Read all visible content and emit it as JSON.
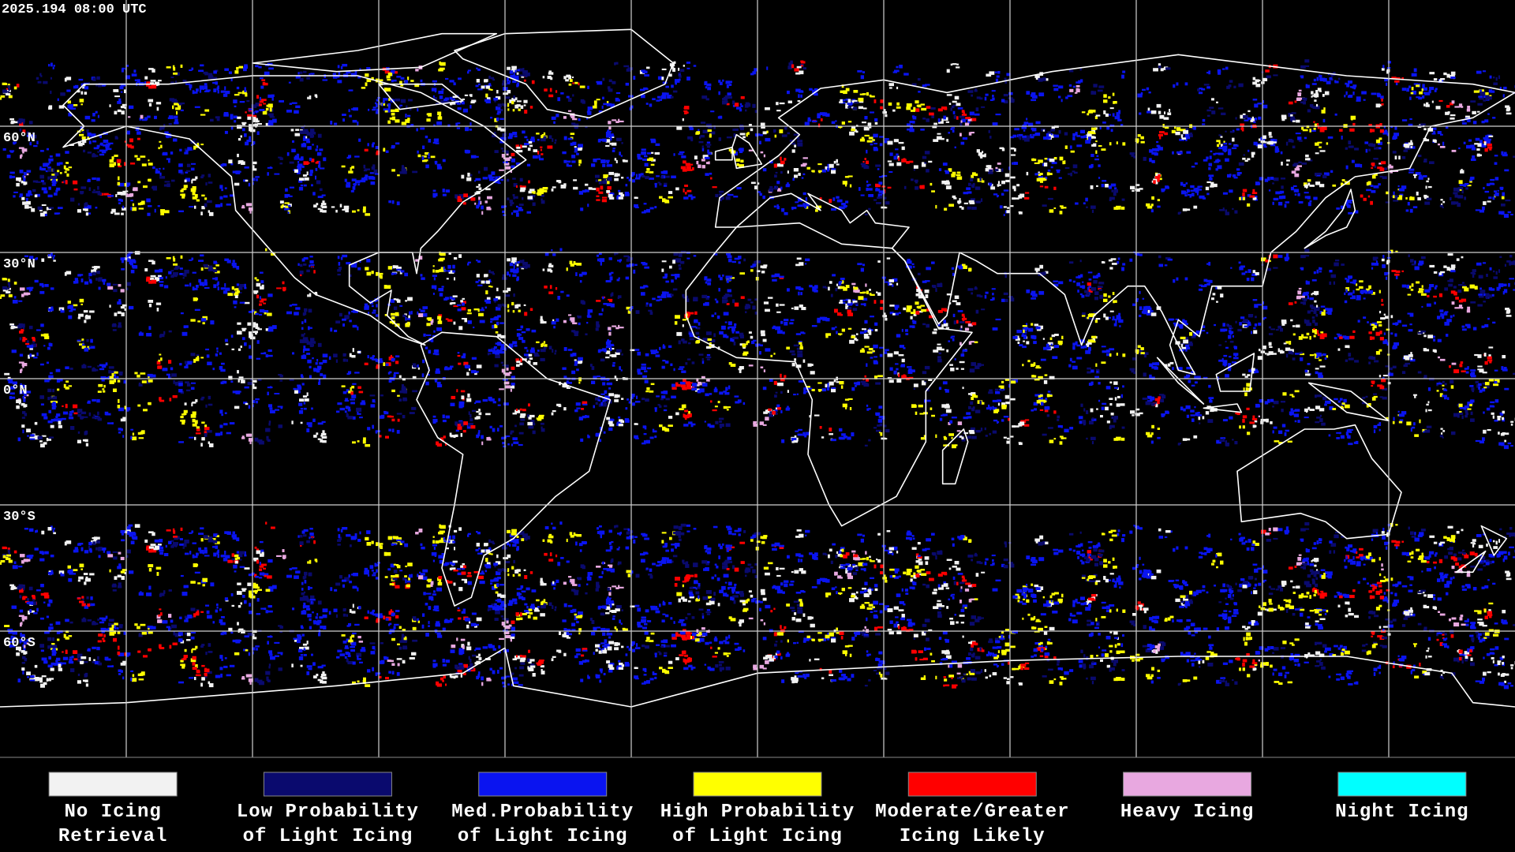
{
  "header": {
    "timestamp": "2025.194 08:00 UTC"
  },
  "map": {
    "lat_labels": [
      "60°N",
      "30°N",
      "0°N",
      "30°S",
      "60°S"
    ]
  },
  "legend": {
    "items": [
      {
        "lines": [
          "No Icing",
          "Retrieval"
        ],
        "color": "#f2f2f2"
      },
      {
        "lines": [
          "Low Probability",
          "of Light Icing"
        ],
        "color": "#0a0a6e"
      },
      {
        "lines": [
          "Med.Probability",
          "of Light Icing"
        ],
        "color": "#0a14f0"
      },
      {
        "lines": [
          "High Probability",
          "of Light Icing"
        ],
        "color": "#ffff00"
      },
      {
        "lines": [
          "Moderate/Greater",
          "Icing Likely"
        ],
        "color": "#ff0000"
      },
      {
        "lines": [
          "Heavy Icing",
          ""
        ],
        "color": "#e8a8e0"
      },
      {
        "lines": [
          "Night Icing",
          ""
        ],
        "color": "#00ffff"
      }
    ]
  }
}
